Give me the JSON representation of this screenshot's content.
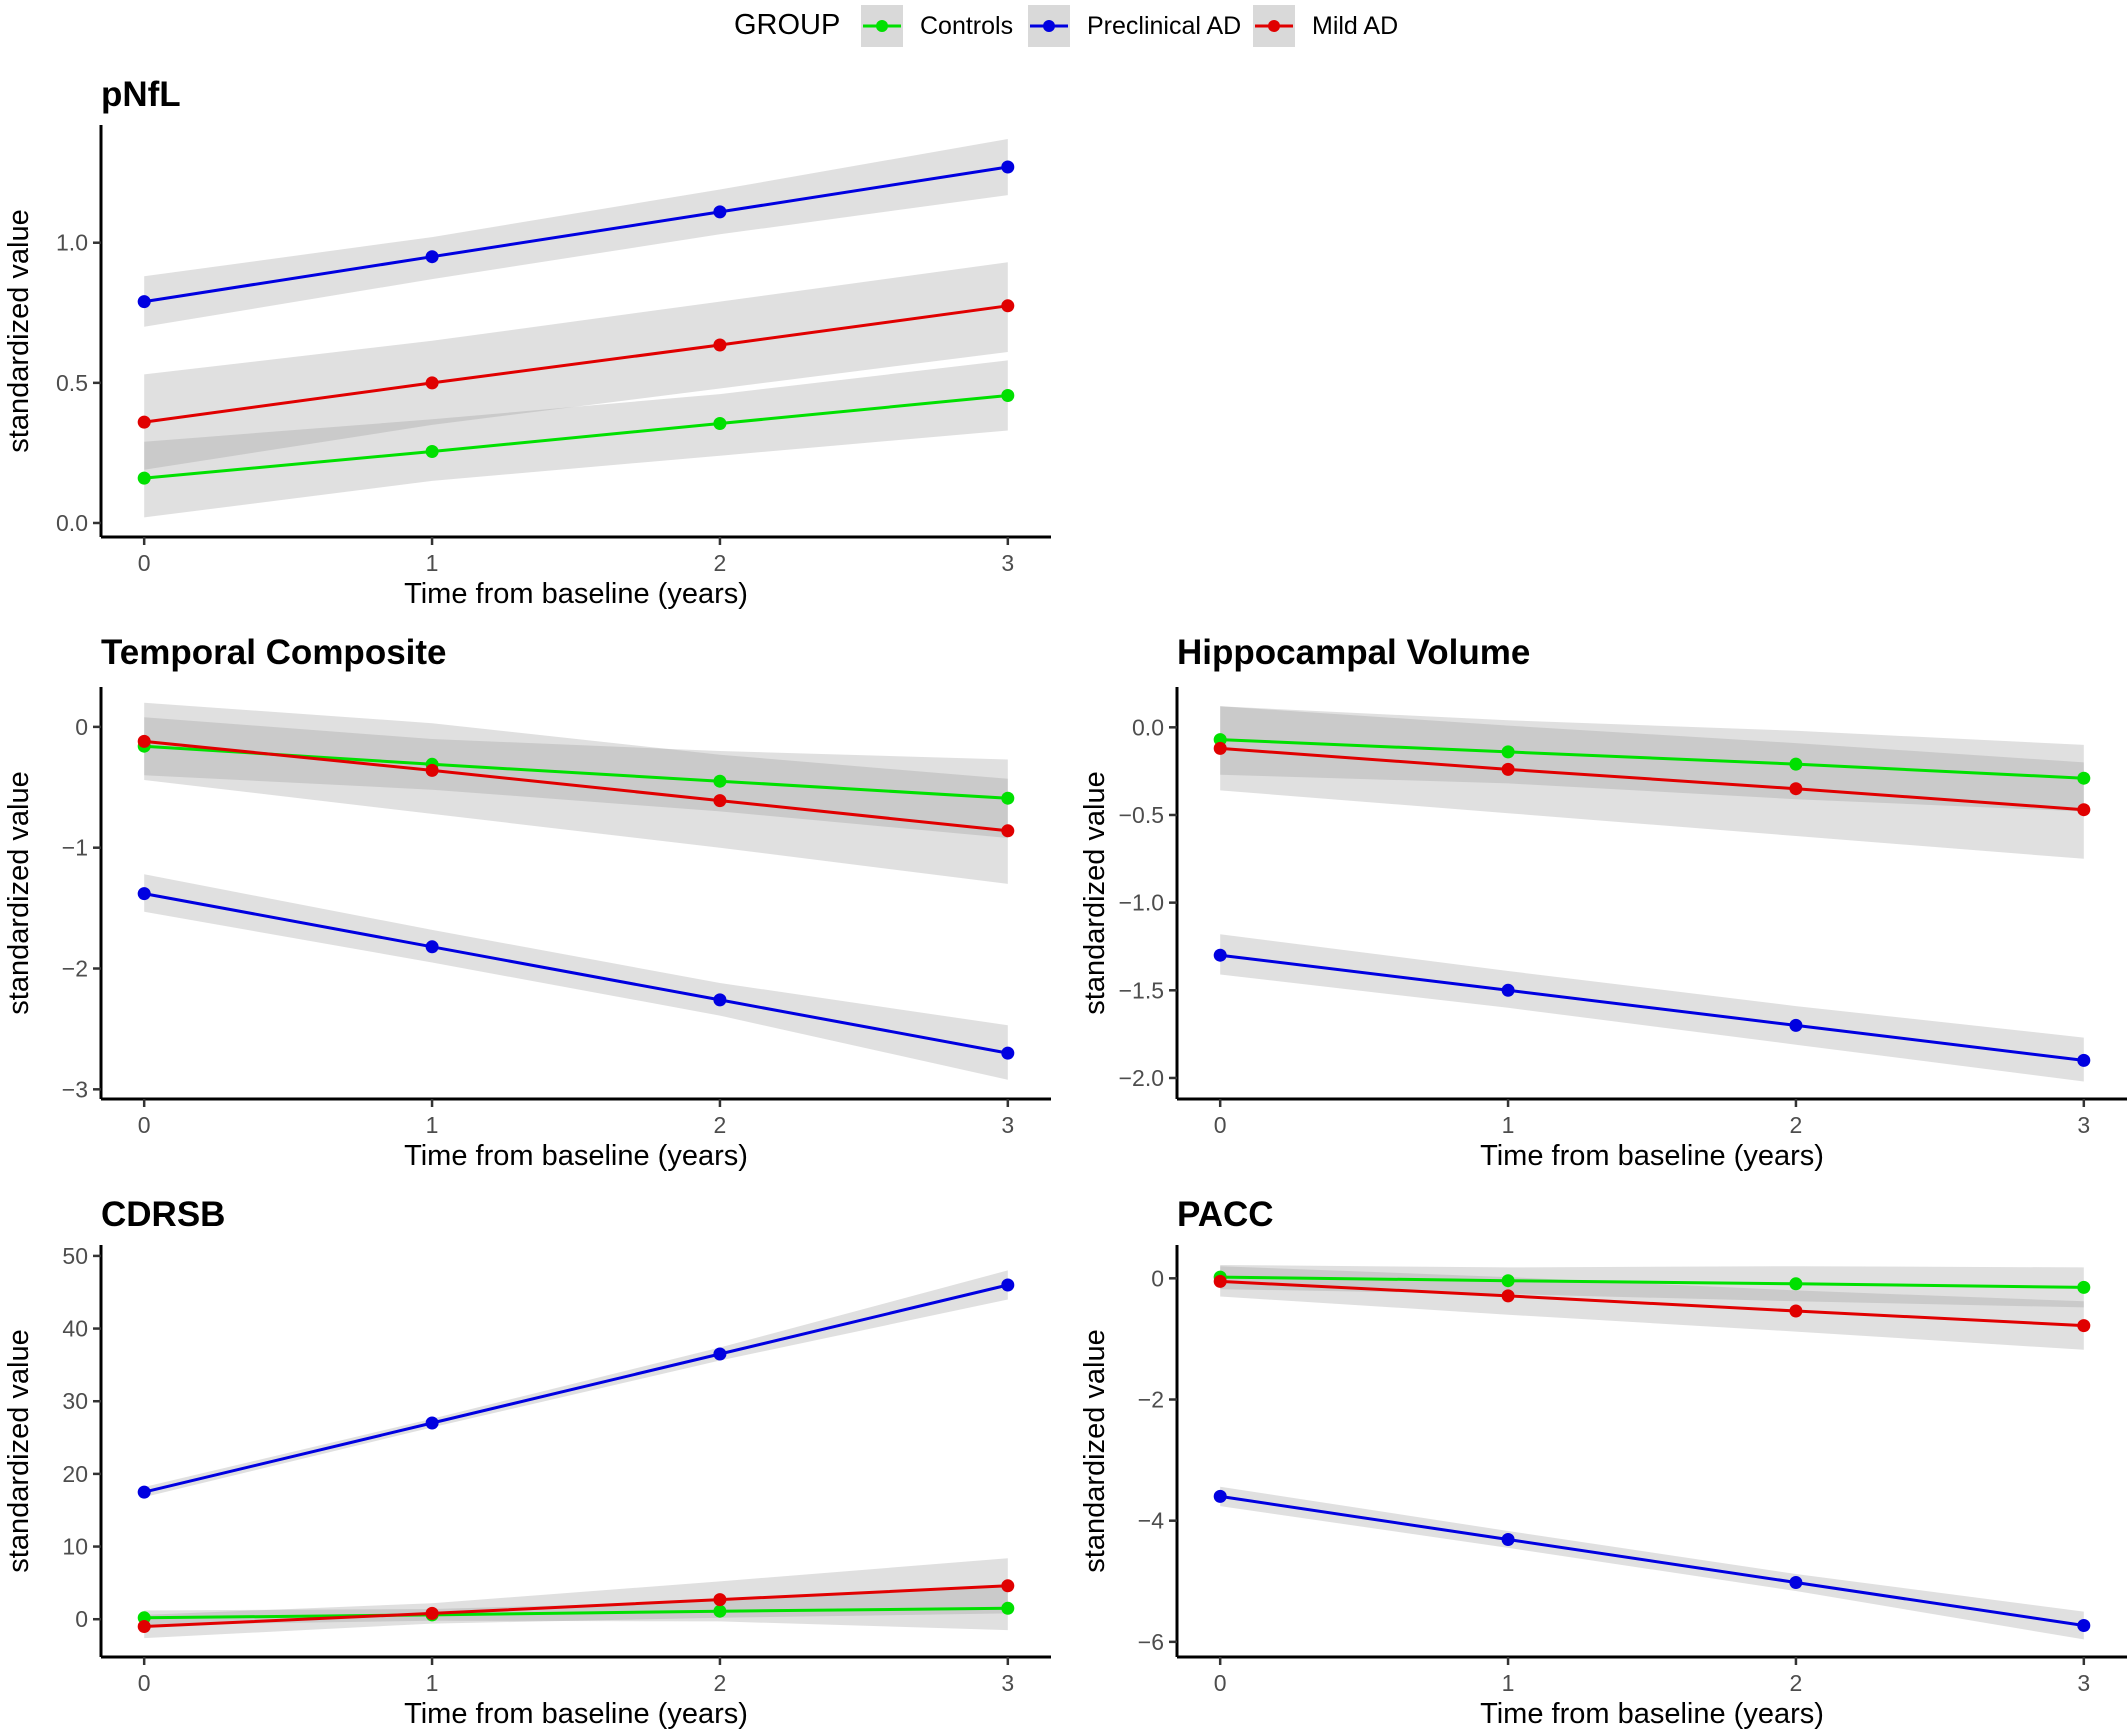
{
  "legend": {
    "title": "GROUP",
    "groups": [
      {
        "name": "Controls",
        "color": "#00e000"
      },
      {
        "name": "Preclinical AD",
        "color": "#0000e0"
      },
      {
        "name": "Mild AD",
        "color": "#e00000"
      }
    ]
  },
  "band_color": "#d9d9d9",
  "chart_data": [
    {
      "type": "line",
      "title": "pNfL",
      "xlabel": "Time from baseline (years)",
      "ylabel": "standardized value",
      "x": [
        0,
        1,
        2,
        3
      ],
      "xlim": [
        -0.15,
        3.15
      ],
      "ylim": [
        -0.05,
        1.42
      ],
      "yticks": [
        0.0,
        0.5,
        1.0
      ],
      "ytick_labels": [
        "0.0",
        "0.5",
        "1.0"
      ],
      "series": [
        {
          "name": "Controls",
          "values": [
            0.16,
            0.255,
            0.355,
            0.455
          ],
          "ci_lower": [
            0.02,
            0.15,
            0.24,
            0.33
          ],
          "ci_upper": [
            0.29,
            0.37,
            0.46,
            0.58
          ]
        },
        {
          "name": "Preclinical AD",
          "values": [
            0.79,
            0.95,
            1.11,
            1.27
          ],
          "ci_lower": [
            0.7,
            0.87,
            1.03,
            1.17
          ],
          "ci_upper": [
            0.88,
            1.02,
            1.19,
            1.37
          ]
        },
        {
          "name": "Mild AD",
          "values": [
            0.36,
            0.5,
            0.635,
            0.775
          ],
          "ci_lower": [
            0.19,
            0.35,
            0.48,
            0.61
          ],
          "ci_upper": [
            0.53,
            0.65,
            0.79,
            0.93
          ]
        }
      ]
    },
    {
      "type": "line",
      "title": "Temporal Composite",
      "xlabel": "Time from baseline (years)",
      "ylabel": "standardized value",
      "x": [
        0,
        1,
        2,
        3
      ],
      "xlim": [
        -0.15,
        3.15
      ],
      "ylim": [
        -3.08,
        0.33
      ],
      "yticks": [
        -3,
        -2,
        -1,
        0
      ],
      "ytick_labels": [
        "−3",
        "−2",
        "−1",
        "0"
      ],
      "series": [
        {
          "name": "Controls",
          "values": [
            -0.16,
            -0.31,
            -0.45,
            -0.59
          ],
          "ci_lower": [
            -0.4,
            -0.52,
            -0.7,
            -0.92
          ],
          "ci_upper": [
            0.08,
            -0.1,
            -0.2,
            -0.27
          ]
        },
        {
          "name": "Preclinical AD",
          "values": [
            -1.38,
            -1.82,
            -2.26,
            -2.7
          ],
          "ci_lower": [
            -1.53,
            -1.95,
            -2.39,
            -2.92
          ],
          "ci_upper": [
            -1.22,
            -1.68,
            -2.12,
            -2.47
          ]
        },
        {
          "name": "Mild AD",
          "values": [
            -0.12,
            -0.36,
            -0.61,
            -0.86
          ],
          "ci_lower": [
            -0.44,
            -0.72,
            -1.0,
            -1.3
          ],
          "ci_upper": [
            0.2,
            0.03,
            -0.23,
            -0.43
          ]
        }
      ]
    },
    {
      "type": "line",
      "title": "Hippocampal Volume",
      "xlabel": "Time from baseline (years)",
      "ylabel": "standardized value",
      "x": [
        0,
        1,
        2,
        3
      ],
      "xlim": [
        -0.15,
        3.15
      ],
      "ylim": [
        -2.12,
        0.23
      ],
      "yticks": [
        -2.0,
        -1.5,
        -1.0,
        -0.5,
        0.0
      ],
      "ytick_labels": [
        "−2.0",
        "−1.5",
        "−1.0",
        "−0.5",
        "0.0"
      ],
      "series": [
        {
          "name": "Controls",
          "values": [
            -0.07,
            -0.14,
            -0.21,
            -0.29
          ],
          "ci_lower": [
            -0.27,
            -0.32,
            -0.41,
            -0.48
          ],
          "ci_upper": [
            0.12,
            0.04,
            -0.02,
            -0.1
          ]
        },
        {
          "name": "Preclinical AD",
          "values": [
            -1.3,
            -1.5,
            -1.7,
            -1.9
          ],
          "ci_lower": [
            -1.41,
            -1.6,
            -1.81,
            -2.02
          ],
          "ci_upper": [
            -1.18,
            -1.39,
            -1.59,
            -1.77
          ]
        },
        {
          "name": "Mild AD",
          "values": [
            -0.12,
            -0.24,
            -0.35,
            -0.47
          ],
          "ci_lower": [
            -0.36,
            -0.49,
            -0.62,
            -0.75
          ],
          "ci_upper": [
            0.12,
            0.01,
            -0.09,
            -0.2
          ]
        }
      ]
    },
    {
      "type": "line",
      "title": "CDRSB",
      "xlabel": "Time from baseline (years)",
      "ylabel": "standardized value",
      "x": [
        0,
        1,
        2,
        3
      ],
      "xlim": [
        -0.15,
        3.15
      ],
      "ylim": [
        -5.2,
        51.5
      ],
      "yticks": [
        0,
        10,
        20,
        30,
        40,
        50
      ],
      "ytick_labels": [
        "0",
        "10",
        "20",
        "30",
        "40",
        "50"
      ],
      "series": [
        {
          "name": "Controls",
          "values": [
            0.2,
            0.6,
            1.1,
            1.5
          ],
          "ci_lower": [
            -0.8,
            -0.2,
            -0.3,
            -1.5
          ],
          "ci_upper": [
            1.2,
            1.4,
            2.5,
            4.5
          ]
        },
        {
          "name": "Preclinical AD",
          "values": [
            17.5,
            27.0,
            36.5,
            46.0
          ],
          "ci_lower": [
            16.8,
            26.4,
            35.6,
            44.0
          ],
          "ci_upper": [
            18.2,
            27.6,
            37.4,
            48.0
          ]
        },
        {
          "name": "Mild AD",
          "values": [
            -1.0,
            0.8,
            2.7,
            4.6
          ],
          "ci_lower": [
            -2.6,
            -0.6,
            0.2,
            0.8
          ],
          "ci_upper": [
            0.6,
            2.2,
            5.2,
            8.4
          ]
        }
      ]
    },
    {
      "type": "line",
      "title": "PACC",
      "xlabel": "Time from baseline (years)",
      "ylabel": "standardized value",
      "x": [
        0,
        1,
        2,
        3
      ],
      "xlim": [
        -0.15,
        3.15
      ],
      "ylim": [
        -6.25,
        0.55
      ],
      "yticks": [
        -6,
        -4,
        -2,
        0
      ],
      "ytick_labels": [
        "−6",
        "−4",
        "−2",
        "0"
      ],
      "series": [
        {
          "name": "Controls",
          "values": [
            0.02,
            -0.04,
            -0.09,
            -0.15
          ],
          "ci_lower": [
            -0.18,
            -0.26,
            -0.38,
            -0.48
          ],
          "ci_upper": [
            0.22,
            0.18,
            0.2,
            0.18
          ]
        },
        {
          "name": "Preclinical AD",
          "values": [
            -3.6,
            -4.31,
            -5.02,
            -5.73
          ],
          "ci_lower": [
            -3.76,
            -4.45,
            -5.16,
            -5.96
          ],
          "ci_upper": [
            -3.44,
            -4.17,
            -4.88,
            -5.5
          ]
        },
        {
          "name": "Mild AD",
          "values": [
            -0.05,
            -0.29,
            -0.54,
            -0.78
          ],
          "ci_lower": [
            -0.3,
            -0.6,
            -0.88,
            -1.18
          ],
          "ci_upper": [
            0.2,
            0.02,
            -0.2,
            -0.38
          ]
        }
      ]
    }
  ]
}
